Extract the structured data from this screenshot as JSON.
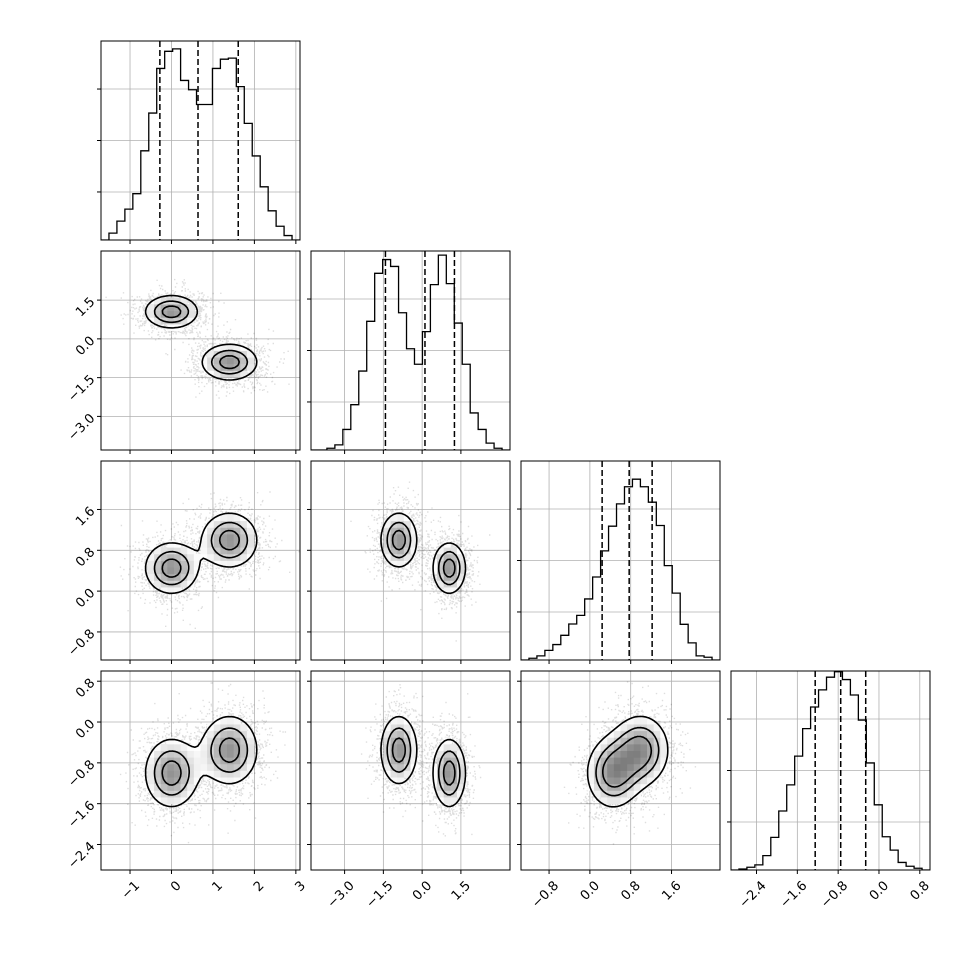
{
  "chart_data": {
    "type": "corner",
    "grid": true,
    "title": "",
    "parameters": [
      {
        "index": 0,
        "range": [
          -1.7,
          3.1
        ],
        "ticks": [
          -1,
          0,
          1,
          2,
          3
        ],
        "tick_labels": [
          "−1",
          "0",
          "1",
          "2",
          "3"
        ],
        "quantiles": [
          -0.28,
          0.64,
          1.61
        ],
        "histogram": [
          0,
          0.2,
          0.55,
          0.9,
          1.35,
          2.6,
          3.7,
          5.0,
          5.5,
          5.57,
          4.65,
          4.38,
          3.95,
          3.95,
          5.0,
          5.27,
          5.3,
          4.47,
          3.4,
          2.45,
          1.55,
          0.85,
          0.4,
          0.13,
          0
        ]
      },
      {
        "index": 1,
        "range": [
          -4.3,
          3.4
        ],
        "ticks": [
          -3.0,
          -1.5,
          0.0,
          1.5
        ],
        "tick_labels": [
          "−3.0",
          "−1.5",
          "0.0",
          "1.5"
        ],
        "quantiles": [
          -1.42,
          0.11,
          1.25
        ],
        "histogram": [
          0,
          0,
          0.05,
          0.15,
          0.6,
          1.32,
          2.3,
          3.75,
          5.15,
          5.55,
          5.35,
          4.0,
          2.95,
          2.5,
          3.45,
          4.82,
          5.68,
          4.85,
          3.7,
          2.5,
          1.08,
          0.6,
          0.2,
          0.05,
          0
        ]
      },
      {
        "index": 2,
        "range": [
          -1.35,
          2.55
        ],
        "ticks": [
          -0.8,
          0.0,
          0.8,
          1.6
        ],
        "tick_labels": [
          "−0.8",
          "0.0",
          "0.8",
          "1.6"
        ],
        "quantiles": [
          0.24,
          0.77,
          1.22
        ],
        "histogram": [
          0,
          0.05,
          0.12,
          0.28,
          0.45,
          0.72,
          1.05,
          1.3,
          1.78,
          2.42,
          3.18,
          3.9,
          4.55,
          5.05,
          5.27,
          5.05,
          4.6,
          3.92,
          2.75,
          1.95,
          1.04,
          0.5,
          0.12,
          0.08,
          0
        ]
      },
      {
        "index": 3,
        "range": [
          -2.9,
          1.0
        ],
        "ticks": [
          -2.4,
          -1.6,
          -0.8,
          0.0,
          0.8
        ],
        "tick_labels": [
          "−2.4",
          "−1.6",
          "−0.8",
          "0.0",
          "0.8"
        ],
        "quantiles": [
          -1.25,
          -0.75,
          -0.26
        ],
        "histogram": [
          0,
          0.03,
          0.08,
          0.15,
          0.42,
          0.95,
          1.72,
          2.48,
          3.32,
          4.12,
          4.75,
          5.25,
          5.62,
          5.78,
          5.55,
          5.1,
          4.37,
          3.12,
          1.9,
          0.97,
          0.58,
          0.22,
          0.11,
          0.05,
          0
        ]
      }
    ],
    "hist_ylim": [
      0,
      5.8
    ],
    "hist_yticks": [
      1.4,
      2.9,
      4.4
    ],
    "modes": [
      {
        "mean": [
          0.0,
          1.05,
          0.45,
          -1.0
        ],
        "sd": [
          0.38,
          0.38,
          0.3,
          0.4
        ],
        "weight": 1.0
      },
      {
        "mean": [
          1.4,
          -0.9,
          1.0,
          -0.55
        ],
        "sd": [
          0.4,
          0.42,
          0.32,
          0.4
        ],
        "weight": 1.0
      }
    ],
    "contour_levels": [
      0.42,
      0.28,
      0.13
    ]
  }
}
